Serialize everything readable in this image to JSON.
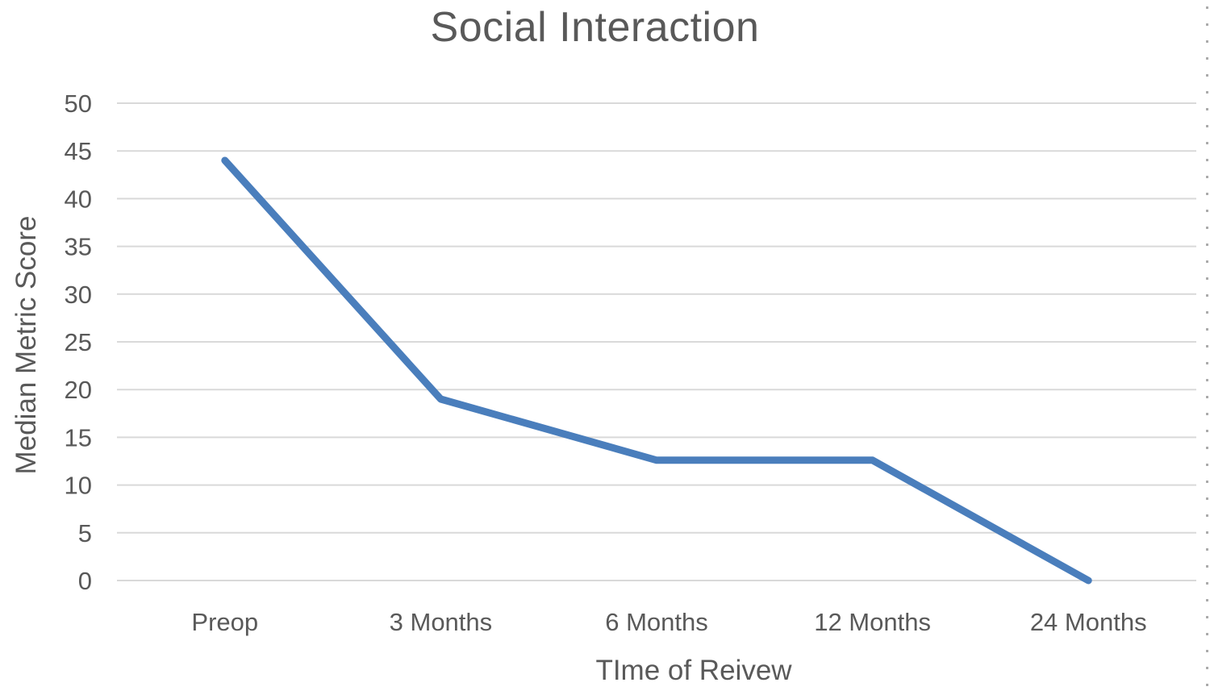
{
  "chart_data": {
    "type": "line",
    "title": "Social Interaction",
    "xlabel": "TIme of Reivew",
    "ylabel": "Median Metric Score",
    "categories": [
      "Preop",
      "3 Months",
      "6 Months",
      "12 Months",
      "24 Months"
    ],
    "values": [
      44,
      19,
      12.6,
      12.6,
      0
    ],
    "yticks": [
      0,
      5,
      10,
      15,
      20,
      25,
      30,
      35,
      40,
      45,
      50
    ],
    "ylim": [
      0,
      50
    ],
    "grid": true,
    "legend_position": "none",
    "line_color": "#4A7EBC",
    "gridline_color": "#D9D9D9",
    "text_color": "#595959",
    "background_color": "#FFFFFF"
  }
}
